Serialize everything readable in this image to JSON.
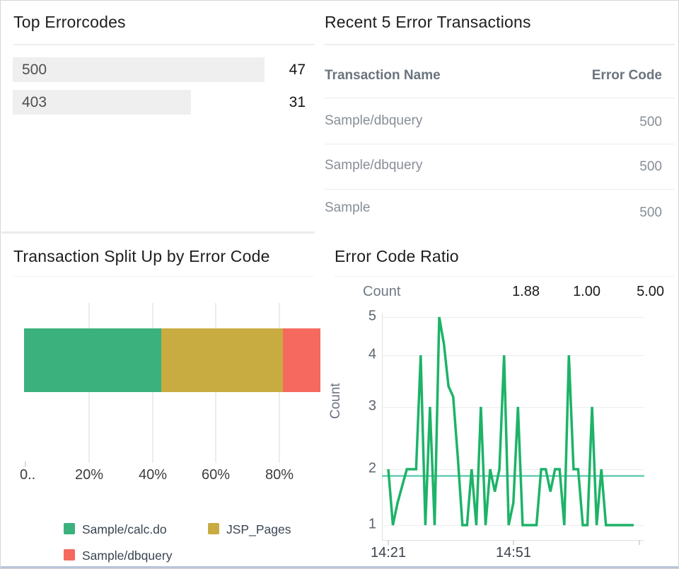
{
  "top_errorcodes": {
    "title": "Top Errorcodes",
    "rows": [
      {
        "label": "500",
        "value": 47
      },
      {
        "label": "403",
        "value": 31
      }
    ]
  },
  "recent": {
    "title": "Recent 5 Error Transactions",
    "col_name": "Transaction Name",
    "col_code": "Error Code",
    "rows": [
      {
        "name": "Sample/dbquery",
        "code": "500"
      },
      {
        "name": "Sample/dbquery",
        "code": "500"
      },
      {
        "name": "Sample",
        "code": "500"
      }
    ]
  },
  "split": {
    "title": "Transaction Split Up by Error Code",
    "chart_data": {
      "type": "bar",
      "stacked": true,
      "orientation": "horizontal",
      "x_ticks": [
        "0..",
        "20%",
        "40%",
        "60%",
        "80%"
      ],
      "axis_pct_per_tick": 20,
      "series": [
        {
          "name": "Sample/calc.do",
          "color": "#3bb17e",
          "pct": 43.2
        },
        {
          "name": "JSP_Pages",
          "color": "#c8ac42",
          "pct": 38.3
        },
        {
          "name": "Sample/dbquery",
          "color": "#f5695f",
          "pct": 18.5
        }
      ],
      "note": "third segment clipped at panel edge"
    }
  },
  "ratio": {
    "title": "Error Code Ratio",
    "header_label": "Count",
    "stats": {
      "avg": "1.88",
      "min": "1.00",
      "max": "5.00"
    },
    "chart_data": {
      "type": "line",
      "ylabel": "Count",
      "line_color": "#1db368",
      "avg_line_color": "#66cdb3",
      "ylim": [
        1,
        5
      ],
      "y_ticks": [
        5,
        4,
        3,
        2,
        1
      ],
      "x_ticks": [
        "14:21",
        "14:51"
      ],
      "average": 1.88,
      "values": [
        2,
        1,
        1.4,
        1.7,
        2,
        2,
        2,
        4,
        1,
        3,
        1,
        5,
        4.3,
        3.4,
        3.2,
        2.2,
        1,
        1,
        2,
        1,
        3,
        1,
        2,
        1.6,
        2,
        4,
        1,
        1.4,
        3,
        1,
        1,
        1,
        1,
        2,
        2,
        1.6,
        2,
        2,
        1,
        4,
        2,
        2,
        1,
        1,
        3,
        1,
        2,
        1,
        1,
        1,
        1,
        1,
        1,
        1
      ]
    }
  }
}
